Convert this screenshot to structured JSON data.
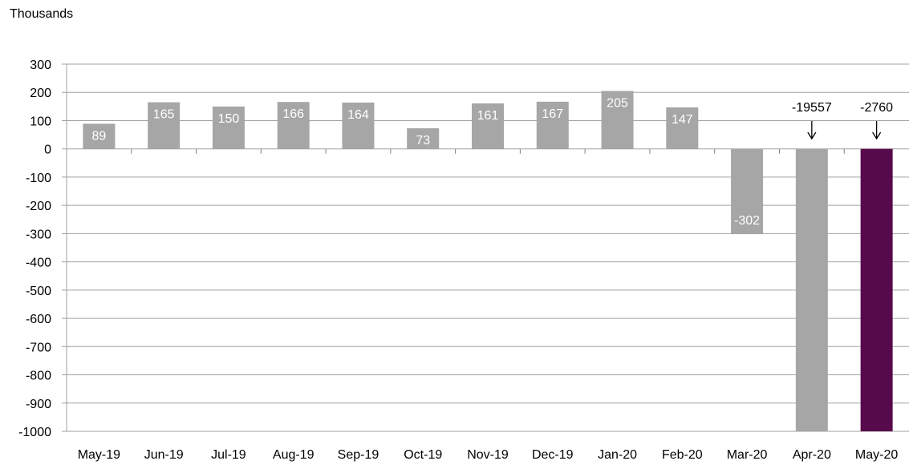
{
  "chart_data": {
    "type": "bar",
    "unit_label": "Thousands",
    "categories": [
      "May-19",
      "Jun-19",
      "Jul-19",
      "Aug-19",
      "Sep-19",
      "Oct-19",
      "Nov-19",
      "Dec-19",
      "Jan-20",
      "Feb-20",
      "Mar-20",
      "Apr-20",
      "May-20"
    ],
    "values": [
      89,
      165,
      150,
      166,
      164,
      73,
      161,
      167,
      205,
      147,
      -302,
      -19557,
      -2760
    ],
    "value_labels": [
      "89",
      "165",
      "150",
      "166",
      "164",
      "73",
      "161",
      "167",
      "205",
      "147",
      "-302",
      "-19557",
      "-2760"
    ],
    "truncated_indices": [
      11,
      12
    ],
    "ylim": [
      -1000,
      300
    ],
    "yticks": [
      300,
      200,
      100,
      0,
      -100,
      -200,
      -300,
      -400,
      -500,
      -600,
      -700,
      -800,
      -900,
      -1000
    ],
    "grid": true,
    "colors": {
      "bar": "#a6a6a6",
      "highlight": "#570a4b",
      "grid": "#a0a0a0",
      "label_inside": "#ffffff",
      "text": "#000000"
    },
    "highlight_index": 12
  }
}
